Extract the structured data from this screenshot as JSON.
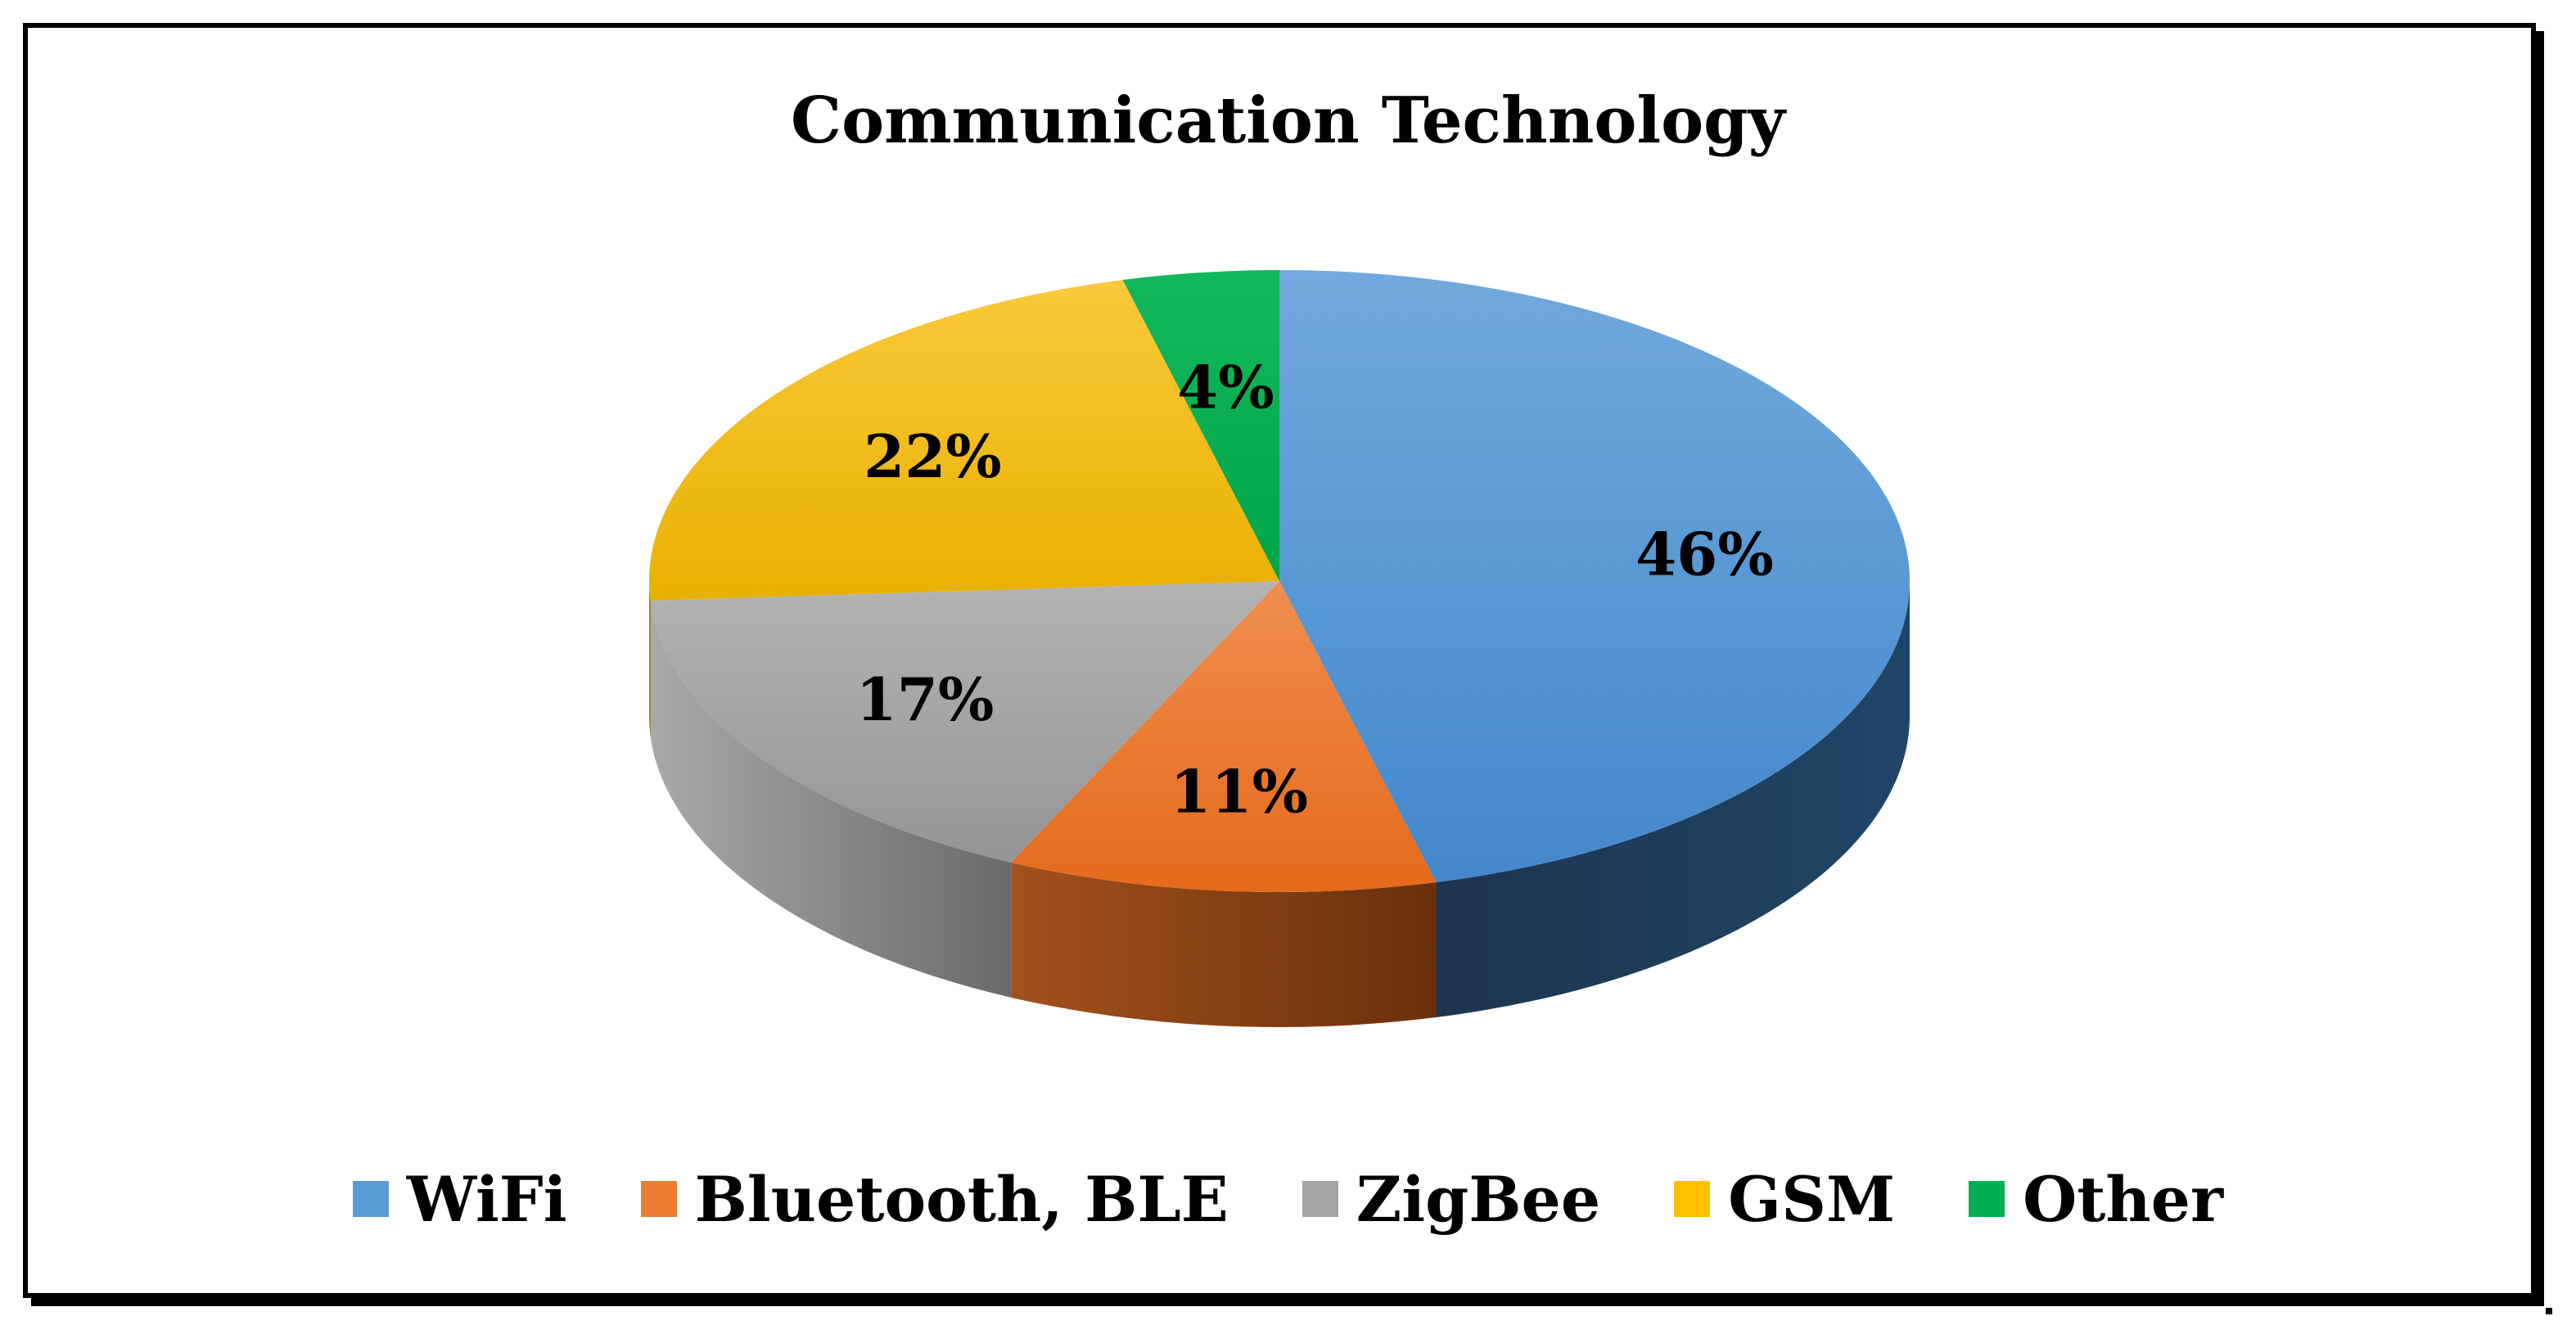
{
  "chart_data": {
    "type": "pie",
    "title": "Communication Technology",
    "categories": [
      "WiFi",
      "Bluetooth, BLE",
      "ZigBee",
      "GSM",
      "Other"
    ],
    "values": [
      46,
      11,
      17,
      22,
      4
    ],
    "value_labels": [
      "46%",
      "11%",
      "17%",
      "22%",
      "4%"
    ],
    "colors": [
      "#5b9bd5",
      "#ed7d31",
      "#a5a5a5",
      "#ffc000",
      "#00b050"
    ],
    "legend_position": "bottom",
    "style": "3d"
  }
}
